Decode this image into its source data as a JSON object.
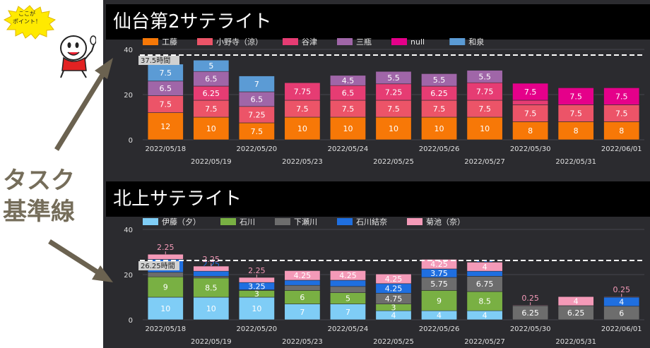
{
  "callout": {
    "text": "ここが\nポイント！"
  },
  "side_note": {
    "line1": "タスク",
    "line2": "基準線"
  },
  "colors": {
    "arrow": "#6b6250",
    "panel": "#2b2b2f",
    "bubble": "#ffea00"
  },
  "chart_data": [
    {
      "type": "bar",
      "stacked": true,
      "title": "仙台第2サテライト",
      "categories": [
        "2022/05/18",
        "2022/05/19",
        "2022/05/20",
        "2022/05/23",
        "2022/05/24",
        "2022/05/25",
        "2022/05/26",
        "2022/05/27",
        "2022/05/30",
        "2022/05/31",
        "2022/06/01"
      ],
      "ylim": [
        0,
        40
      ],
      "yticks": [
        0,
        20,
        40
      ],
      "reference_line": {
        "value": 37.5,
        "label": "37.5時間"
      },
      "legend_position": "top",
      "series": [
        {
          "name": "工藤",
          "color": "#f77807",
          "values": [
            12,
            10,
            7.5,
            10,
            10,
            10,
            10,
            10,
            8,
            8,
            8
          ]
        },
        {
          "name": "小野寺（涼）",
          "color": "#ec5468",
          "values": [
            7.5,
            7.5,
            7.25,
            7.5,
            7.5,
            7.5,
            7.5,
            7.5,
            7.5,
            7.5,
            7.5
          ]
        },
        {
          "name": "谷津",
          "color": "#e63c73",
          "values": [
            0,
            6.25,
            0,
            7.75,
            6.5,
            7.25,
            6.25,
            7.75,
            2,
            0,
            0
          ]
        },
        {
          "name": "三瓶",
          "color": "#a066a8",
          "values": [
            6.5,
            6.5,
            6.5,
            0,
            4.5,
            5.5,
            5.5,
            5.5,
            0,
            0,
            0
          ]
        },
        {
          "name": "null",
          "color": "#e5008a",
          "values": [
            0,
            0,
            0,
            0,
            0,
            0,
            0,
            0,
            7.5,
            7.5,
            7.5
          ]
        },
        {
          "name": "和泉",
          "color": "#5b9bd5",
          "values": [
            7.5,
            5,
            7,
            0,
            0,
            0,
            0,
            0,
            0,
            0,
            0
          ]
        }
      ],
      "hidden_labels": [
        [
          2,
          8
        ]
      ]
    },
    {
      "type": "bar",
      "stacked": true,
      "title": "北上サテライト",
      "categories": [
        "2022/05/18",
        "2022/05/19",
        "2022/05/20",
        "2022/05/23",
        "2022/05/24",
        "2022/05/25",
        "2022/05/26",
        "2022/05/27",
        "2022/05/30",
        "2022/05/31",
        "2022/06/01"
      ],
      "ylim": [
        0,
        40
      ],
      "yticks": [
        0,
        20,
        40
      ],
      "reference_line": {
        "value": 26.25,
        "label": "26.25時間"
      },
      "legend_position": "top",
      "series": [
        {
          "name": "伊藤（夕）",
          "color": "#7fcdf6",
          "values": [
            10,
            10,
            10,
            7,
            7,
            4,
            4,
            4,
            0,
            0,
            0
          ]
        },
        {
          "name": "石川",
          "color": "#79b043",
          "values": [
            9,
            8.5,
            3,
            6,
            5,
            3,
            9,
            8.5,
            0,
            0,
            0
          ]
        },
        {
          "name": "下瀬川",
          "color": "#6d6d6d",
          "values": [
            2,
            0.75,
            0.25,
            2.25,
            2.75,
            4.75,
            5.75,
            6.75,
            6.25,
            6.25,
            6
          ]
        },
        {
          "name": "石川結奈",
          "color": "#1f6fe0",
          "values": [
            5.75,
            2.25,
            3.25,
            2.25,
            2.75,
            4.25,
            3.75,
            2.25,
            0,
            0,
            4
          ]
        },
        {
          "name": "菊池（奈）",
          "color": "#f49ab8",
          "values": [
            2.25,
            2.25,
            2.25,
            4.25,
            4.25,
            4.25,
            4.25,
            4,
            0.25,
            4,
            0.25
          ]
        }
      ]
    }
  ]
}
